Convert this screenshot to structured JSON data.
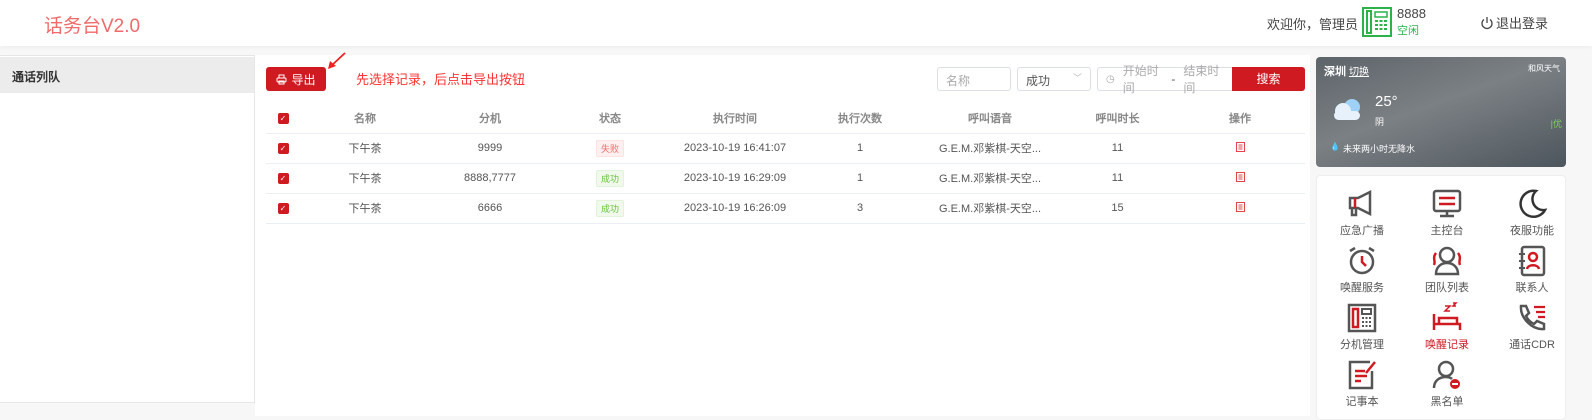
{
  "header": {
    "title": "话务台V2.0",
    "welcome": "欢迎你，管理员",
    "extension": "8888",
    "extension_status": "空闲",
    "logout": "退出登录"
  },
  "sidebar": {
    "items": [
      {
        "label": "通话列队"
      }
    ]
  },
  "toolbar": {
    "export_label": "导出",
    "hint": "先选择记录，后点击导出按钮",
    "name_placeholder": "名称",
    "status_value": "成功",
    "start_placeholder": "开始时间",
    "range_sep": "-",
    "end_placeholder": "结束时间",
    "search_label": "搜索"
  },
  "table": {
    "columns": [
      "名称",
      "分机",
      "状态",
      "执行时间",
      "执行次数",
      "呼叫语音",
      "呼叫时长",
      "操作"
    ],
    "rows": [
      {
        "name": "下午茶",
        "ext": "9999",
        "status": "失败",
        "status_type": "fail",
        "time": "2023-10-19 16:41:07",
        "count": "1",
        "voice": "G.E.M.邓紫棋-天空...",
        "duration": "11"
      },
      {
        "name": "下午茶",
        "ext": "8888,7777",
        "status": "成功",
        "status_type": "ok",
        "time": "2023-10-19 16:29:09",
        "count": "1",
        "voice": "G.E.M.邓紫棋-天空...",
        "duration": "11"
      },
      {
        "name": "下午茶",
        "ext": "6666",
        "status": "成功",
        "status_type": "ok",
        "time": "2023-10-19 16:26:09",
        "count": "3",
        "voice": "G.E.M.邓紫棋-天空...",
        "duration": "15"
      }
    ]
  },
  "weather": {
    "city": "深圳",
    "switch": "切换",
    "provider": "和风天气",
    "temp": "25°",
    "condition": "阴",
    "aqi": "优",
    "forecast": "未来两小时无降水"
  },
  "tools": [
    {
      "label": "应急广播",
      "icon": "megaphone-icon"
    },
    {
      "label": "主控台",
      "icon": "console-icon"
    },
    {
      "label": "夜服功能",
      "icon": "moon-icon"
    },
    {
      "label": "唤醒服务",
      "icon": "alarm-clock-icon"
    },
    {
      "label": "团队列表",
      "icon": "team-icon"
    },
    {
      "label": "联系人",
      "icon": "contacts-icon"
    },
    {
      "label": "分机管理",
      "icon": "desk-phone-icon"
    },
    {
      "label": "唤醒记录",
      "icon": "sleep-bed-icon",
      "active": true
    },
    {
      "label": "通话CDR",
      "icon": "call-log-icon"
    },
    {
      "label": "记事本",
      "icon": "notepad-icon"
    },
    {
      "label": "黑名单",
      "icon": "blacklist-user-icon"
    }
  ],
  "colors": {
    "primary": "#cf1a22",
    "idle": "#2bb34a",
    "logo": "#f06a6a"
  }
}
